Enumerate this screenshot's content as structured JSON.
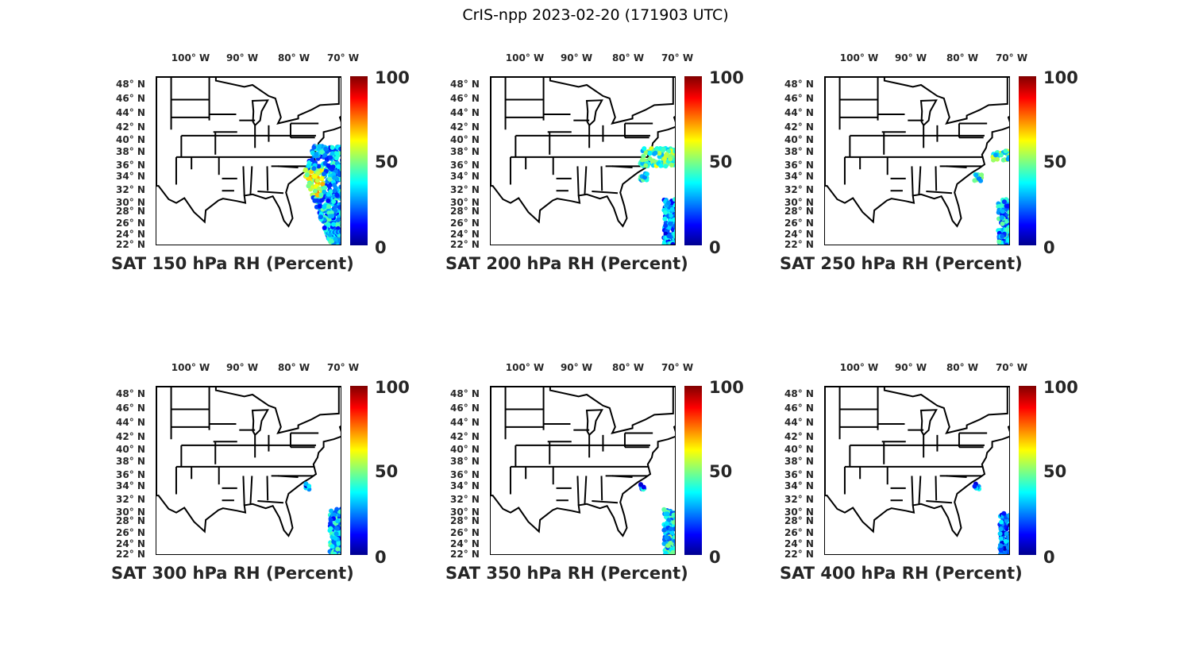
{
  "figure_title": "CrIS-npp 2023-02-20 (171903 UTC)",
  "lon_labels": [
    "100° W",
    "90° W",
    "80° W",
    "70° W"
  ],
  "lat_labels": [
    "48° N",
    "46° N",
    "44° N",
    "42° N",
    "40° N",
    "38° N",
    "36° N",
    "34° N",
    "32° N",
    "30° N",
    "28° N",
    "26° N",
    "24° N",
    "22° N"
  ],
  "colorbar": {
    "ticks": [
      "100",
      "50",
      "0"
    ],
    "range": [
      0,
      100
    ],
    "colormap": "jet"
  },
  "panels": [
    {
      "title": "SAT 150 hPa RH (Percent)"
    },
    {
      "title": "SAT 200 hPa RH (Percent)"
    },
    {
      "title": "SAT 250 hPa RH (Percent)"
    },
    {
      "title": "SAT 300 hPa RH (Percent)"
    },
    {
      "title": "SAT 350 hPa RH (Percent)"
    },
    {
      "title": "SAT 400 hPa RH (Percent)"
    }
  ]
}
